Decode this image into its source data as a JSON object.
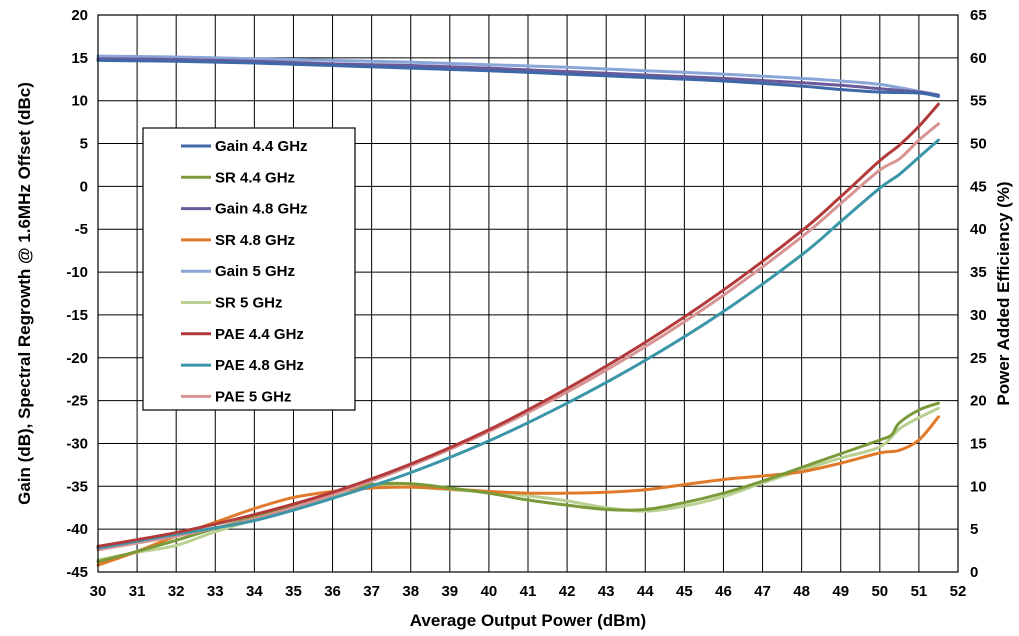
{
  "chart_data": {
    "type": "line",
    "xlabel": "Average Output Power (dBm)",
    "ylabel": "Gain (dB), Spectral Regrowth @ 1.6MHz Offset (dBc)",
    "y2label": "Power Added Efficiency (%)",
    "xlim": [
      30,
      52
    ],
    "ylim": [
      -45,
      20
    ],
    "y2lim": [
      0,
      65
    ],
    "xticks": [
      "30",
      "31",
      "32",
      "33",
      "34",
      "35",
      "36",
      "37",
      "38",
      "39",
      "40",
      "41",
      "42",
      "43",
      "44",
      "45",
      "46",
      "47",
      "48",
      "49",
      "50",
      "51",
      "52"
    ],
    "yticks": [
      "20",
      "15",
      "10",
      "5",
      "0",
      "-5",
      "-10",
      "-15",
      "-20",
      "-25",
      "-30",
      "-35",
      "-40",
      "-45"
    ],
    "y2ticks": [
      "65",
      "60",
      "55",
      "50",
      "45",
      "40",
      "35",
      "30",
      "25",
      "20",
      "15",
      "10",
      "5",
      "0"
    ],
    "grid": "vertical and horizontal major gridlines",
    "legend_position": "left-center, inside plot",
    "series": [
      {
        "name": "Gain 4.4 GHz",
        "axis": "left",
        "color": "#3f68a8",
        "x": [
          30,
          32,
          34,
          36,
          38,
          40,
          42,
          44,
          46,
          48,
          49,
          50,
          51,
          51.5
        ],
        "y": [
          14.7,
          14.6,
          14.4,
          14.1,
          13.8,
          13.5,
          13.1,
          12.7,
          12.3,
          11.7,
          11.3,
          11.0,
          10.9,
          10.5
        ]
      },
      {
        "name": "SR 4.4 GHz",
        "axis": "left",
        "color": "#7a9a3a",
        "x": [
          30,
          31,
          32,
          33,
          34,
          35,
          36,
          37,
          38,
          39,
          40,
          41,
          42,
          43,
          44,
          45,
          46,
          47,
          48,
          49,
          50,
          50.3,
          50.5,
          51,
          51.5
        ],
        "y": [
          -43.8,
          -42.6,
          -41.3,
          -39.9,
          -38.6,
          -37.2,
          -35.8,
          -34.8,
          -34.7,
          -35.2,
          -35.8,
          -36.6,
          -37.2,
          -37.7,
          -37.7,
          -36.9,
          -35.8,
          -34.4,
          -32.8,
          -31.2,
          -29.6,
          -29.0,
          -27.6,
          -26.1,
          -25.3
        ]
      },
      {
        "name": "Gain 4.8 GHz",
        "axis": "left",
        "color": "#6a5a9a",
        "x": [
          30,
          32,
          34,
          36,
          38,
          40,
          42,
          44,
          46,
          48,
          49,
          50,
          51,
          51.5
        ],
        "y": [
          14.9,
          14.8,
          14.6,
          14.3,
          14.1,
          13.8,
          13.4,
          13.0,
          12.6,
          12.1,
          11.8,
          11.4,
          11.0,
          10.6
        ]
      },
      {
        "name": "SR 4.8 GHz",
        "axis": "left",
        "color": "#e07a2a",
        "x": [
          30,
          31,
          32,
          33,
          34,
          35,
          36,
          37,
          38,
          39,
          40,
          41,
          42,
          43,
          44,
          45,
          46,
          47,
          48,
          49,
          50,
          50.5,
          51,
          51.5
        ],
        "y": [
          -44.2,
          -42.6,
          -40.8,
          -39.2,
          -37.6,
          -36.3,
          -35.6,
          -35.2,
          -35.1,
          -35.3,
          -35.6,
          -35.8,
          -35.8,
          -35.7,
          -35.4,
          -34.8,
          -34.2,
          -33.8,
          -33.3,
          -32.3,
          -31.1,
          -30.8,
          -29.6,
          -26.9
        ]
      },
      {
        "name": "Gain 5 GHz",
        "axis": "left",
        "color": "#8aa6d8",
        "x": [
          30,
          32,
          34,
          36,
          38,
          40,
          42,
          44,
          46,
          48,
          49,
          50,
          51,
          51.5
        ],
        "y": [
          15.2,
          15.1,
          14.9,
          14.7,
          14.5,
          14.2,
          13.9,
          13.5,
          13.1,
          12.6,
          12.3,
          11.9,
          11.1,
          10.7
        ]
      },
      {
        "name": "SR 5 GHz",
        "axis": "left",
        "color": "#b8d090",
        "x": [
          30,
          31,
          32,
          33,
          34,
          35,
          36,
          37,
          38,
          39,
          40,
          41,
          42,
          43,
          44,
          45,
          46,
          47,
          48,
          49,
          50,
          50.5,
          51,
          51.5
        ],
        "y": [
          -43.6,
          -42.7,
          -41.9,
          -40.3,
          -38.9,
          -37.4,
          -36.1,
          -35.1,
          -35.1,
          -35.4,
          -35.7,
          -36.1,
          -36.7,
          -37.5,
          -37.9,
          -37.3,
          -36.2,
          -34.6,
          -33.1,
          -31.7,
          -30.4,
          -28.3,
          -27.0,
          -25.9
        ]
      },
      {
        "name": "PAE 4.4 GHz",
        "axis": "right",
        "color": "#b23a3a",
        "x": [
          30,
          32,
          34,
          36,
          38,
          40,
          42,
          44,
          46,
          48,
          49,
          50,
          50.5,
          51,
          51.5
        ],
        "y": [
          3.0,
          4.6,
          6.7,
          9.3,
          12.6,
          16.6,
          21.4,
          26.8,
          32.9,
          39.8,
          43.8,
          48.0,
          49.8,
          52.0,
          54.6
        ]
      },
      {
        "name": "PAE 4.8 GHz",
        "axis": "right",
        "color": "#3a96a8",
        "x": [
          30,
          32,
          34,
          36,
          38,
          40,
          42,
          44,
          46,
          48,
          49,
          50,
          50.5,
          51,
          51.5
        ],
        "y": [
          2.8,
          4.4,
          6.0,
          8.6,
          11.6,
          15.3,
          19.7,
          24.7,
          30.4,
          37.0,
          40.9,
          44.8,
          46.4,
          48.4,
          50.4
        ]
      },
      {
        "name": "PAE 5 GHz",
        "axis": "right",
        "color": "#d89494",
        "x": [
          30,
          32,
          34,
          36,
          38,
          40,
          42,
          44,
          46,
          48,
          49,
          50,
          50.5,
          51,
          51.5
        ],
        "y": [
          2.6,
          4.2,
          6.2,
          9.0,
          12.4,
          16.4,
          21.0,
          26.3,
          32.3,
          39.1,
          43.0,
          46.9,
          48.2,
          50.4,
          52.3
        ]
      }
    ]
  }
}
